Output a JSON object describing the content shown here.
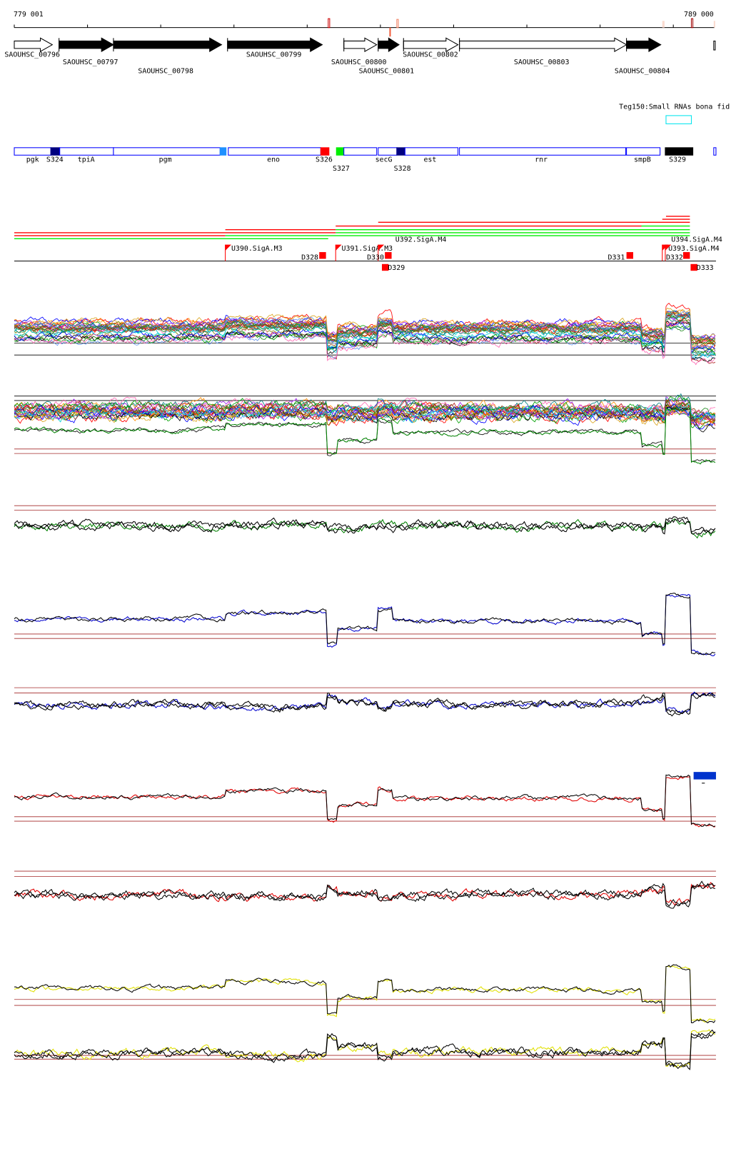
{
  "ruler": {
    "start_label": "779 001",
    "end_label": "789 000"
  },
  "genes": [
    {
      "name": "SAOUHSC_00796",
      "filled": false
    },
    {
      "name": "SAOUHSC_00797",
      "filled": true
    },
    {
      "name": "SAOUHSC_00798",
      "filled": true
    },
    {
      "name": "SAOUHSC_00799",
      "filled": true
    },
    {
      "name": "SAOUHSC_00800",
      "filled": false
    },
    {
      "name": "SAOUHSC_00801",
      "filled": true
    },
    {
      "name": "SAOUHSC_00802",
      "filled": false
    },
    {
      "name": "SAOUHSC_00803",
      "filled": false
    },
    {
      "name": "SAOUHSC_00804",
      "filled": true
    }
  ],
  "small_rna": {
    "label": "Teg150:Small RNAs bona fid",
    "color": "#00e5ee"
  },
  "features": [
    {
      "name": "pgk"
    },
    {
      "name": "S324",
      "color": "#000080"
    },
    {
      "name": "tpiA"
    },
    {
      "name": "pgm"
    },
    {
      "name": "eno"
    },
    {
      "name": "S326",
      "color": "#ff0000"
    },
    {
      "name": "S327",
      "color": "#00ee00"
    },
    {
      "name": "secG"
    },
    {
      "name": "S328",
      "color": "#000080"
    },
    {
      "name": "est"
    },
    {
      "name": "rnr"
    },
    {
      "name": "smpB"
    },
    {
      "name": "S329",
      "color": "#000000"
    }
  ],
  "promoters": [
    {
      "name": "U390.SigA.M3"
    },
    {
      "name": "U391.SigA.M3"
    },
    {
      "name": "U392.SigA.M4"
    },
    {
      "name": "U393.SigA.M4"
    },
    {
      "name": "U394.SigA.M4"
    }
  ],
  "terminators": [
    {
      "name": "D328"
    },
    {
      "name": "D329"
    },
    {
      "name": "D330"
    },
    {
      "name": "D331"
    },
    {
      "name": "D332"
    },
    {
      "name": "D333"
    }
  ],
  "colors": {
    "feature_outline": "#0000ff",
    "transcript_up": "#ff0000",
    "transcript_down": "#00ee00",
    "threshold": "#a52a2a",
    "panel_traces": [
      "#008000",
      "#0000cd",
      "#e00000",
      "#e0e000"
    ]
  }
}
